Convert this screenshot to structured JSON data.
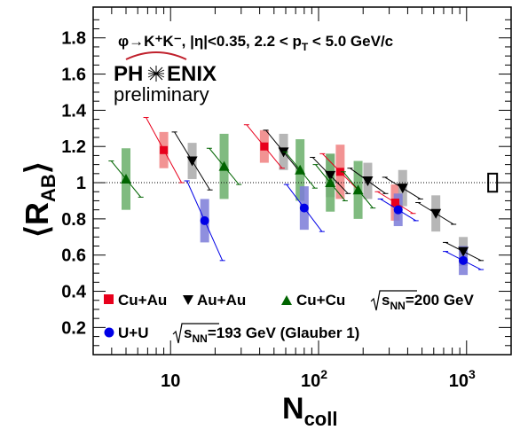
{
  "chart_data": {
    "type": "scatter",
    "title": "",
    "xlabel": "N",
    "xlabel_sub": "coll",
    "ylabel": "⟨R",
    "ylabel_sub": "AB",
    "ylabel_close": "⟩",
    "x_scale": "log",
    "xlim": [
      3,
      2000
    ],
    "ylim": [
      0.05,
      1.97
    ],
    "x_ticks": [
      {
        "value": 10,
        "base": "10",
        "exp": ""
      },
      {
        "value": 100,
        "base": "10",
        "exp": "2"
      },
      {
        "value": 1000,
        "base": "10",
        "exp": "3"
      }
    ],
    "y_ticks": [
      0.2,
      0.4,
      0.6,
      0.8,
      1,
      1.2,
      1.4,
      1.6,
      1.8
    ],
    "y_tick_labels": [
      "0.2",
      "0.4",
      "0.6",
      "0.8",
      "1",
      "1.2",
      "1.4",
      "1.6",
      "1.8"
    ],
    "reference_line": 1.0,
    "global_uncertainty": {
      "x": 1500,
      "low": 0.95,
      "high": 1.05
    },
    "annotation": {
      "reaction": "φ→K⁺K⁻,  |η|<0.35,  2.2 < p",
      "reaction_sub": "T",
      "reaction_tail": " < 5.0 GeV/c"
    },
    "logo": {
      "left": "PH",
      "right": "ENIX",
      "subtitle": "preliminary"
    },
    "legend": {
      "row1_energy": "s",
      "row1_energy_sub": "NN",
      "row1_energy_tail": "=200 GeV",
      "row2_energy": "s",
      "row2_energy_sub": "NN",
      "row2_energy_tail": "=193 GeV (Glauber 1)"
    },
    "series": [
      {
        "name": "Cu+Au",
        "marker": "square",
        "color": "#e8001c",
        "box_color": "#f08080",
        "x_err": 0.12,
        "points": [
          {
            "x": 9,
            "y": 1.18,
            "sys": 0.1,
            "stat": 0.18
          },
          {
            "x": 43,
            "y": 1.2,
            "sys": 0.09,
            "stat": 0.12
          },
          {
            "x": 140,
            "y": 1.06,
            "sys": 0.15,
            "stat": 0.1
          },
          {
            "x": 330,
            "y": 0.89,
            "sys": 0.1,
            "stat": 0.06
          }
        ]
      },
      {
        "name": "Au+Au",
        "marker": "triangle-down",
        "color": "#000000",
        "box_color": "#a9a9a9",
        "x_err": 0.12,
        "points": [
          {
            "x": 14,
            "y": 1.12,
            "sys": 0.1,
            "stat": 0.16
          },
          {
            "x": 58,
            "y": 1.17,
            "sys": 0.1,
            "stat": 0.12
          },
          {
            "x": 120,
            "y": 1.04,
            "sys": 0.12,
            "stat": 0.1
          },
          {
            "x": 215,
            "y": 1.01,
            "sys": 0.1,
            "stat": 0.07
          },
          {
            "x": 370,
            "y": 0.97,
            "sys": 0.1,
            "stat": 0.06
          },
          {
            "x": 620,
            "y": 0.83,
            "sys": 0.1,
            "stat": 0.06
          },
          {
            "x": 950,
            "y": 0.62,
            "sys": 0.08,
            "stat": 0.05
          }
        ]
      },
      {
        "name": "Cu+Cu",
        "marker": "triangle-up",
        "color": "#006400",
        "box_color": "#6aaf6a",
        "x_err": 0.1,
        "points": [
          {
            "x": 5,
            "y": 1.02,
            "sys": 0.17,
            "stat": 0.1
          },
          {
            "x": 23,
            "y": 1.09,
            "sys": 0.18,
            "stat": 0.1
          },
          {
            "x": 75,
            "y": 1.07,
            "sys": 0.17,
            "stat": 0.1
          },
          {
            "x": 120,
            "y": 1.0,
            "sys": 0.16,
            "stat": 0.1
          },
          {
            "x": 185,
            "y": 0.96,
            "sys": 0.16,
            "stat": 0.1
          }
        ]
      },
      {
        "name": "U+U",
        "marker": "circle",
        "color": "#0000e6",
        "box_color": "#7b7bd8",
        "x_err": 0.12,
        "points": [
          {
            "x": 17,
            "y": 0.79,
            "sys": 0.12,
            "stat": 0.22
          },
          {
            "x": 80,
            "y": 0.86,
            "sys": 0.12,
            "stat": 0.13
          },
          {
            "x": 345,
            "y": 0.85,
            "sys": 0.09,
            "stat": 0.06
          },
          {
            "x": 950,
            "y": 0.57,
            "sys": 0.08,
            "stat": 0.05
          }
        ]
      }
    ]
  }
}
